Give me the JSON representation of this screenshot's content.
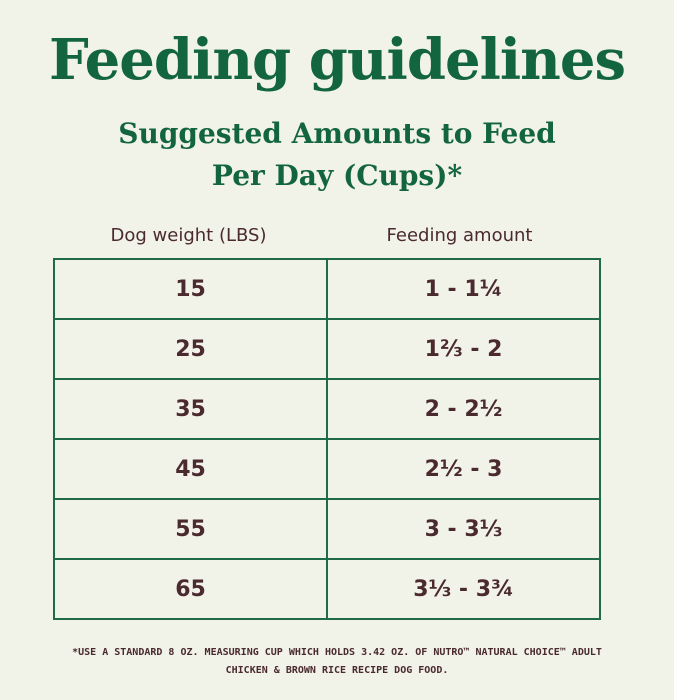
{
  "title": "Feeding guidelines",
  "subtitle": {
    "line1": "Suggested Amounts to Feed",
    "line2": "Per Day (Cups)*"
  },
  "table": {
    "headers": {
      "weight": "Dog weight (LBS)",
      "amount": "Feeding amount"
    },
    "rows": [
      {
        "weight": "15",
        "amount": "1 - 1¼"
      },
      {
        "weight": "25",
        "amount": "1⅔ - 2"
      },
      {
        "weight": "35",
        "amount": "2 - 2½"
      },
      {
        "weight": "45",
        "amount": "2½ - 3"
      },
      {
        "weight": "55",
        "amount": "3 - 3⅓"
      },
      {
        "weight": "65",
        "amount": "3⅓ - 3¾"
      }
    ]
  },
  "footnote": {
    "line1": "*USE A STANDARD 8 OZ. MEASURING CUP WHICH HOLDS 3.42 OZ. OF NUTRO™ NATURAL CHOICE™ ADULT",
    "line2": "CHICKEN & BROWN RICE RECIPE DOG FOOD."
  },
  "colors": {
    "background": "#f1f2e8",
    "heading_green": "#13653f",
    "table_border": "#1f6b47",
    "text_brown": "#4a2a2e"
  }
}
